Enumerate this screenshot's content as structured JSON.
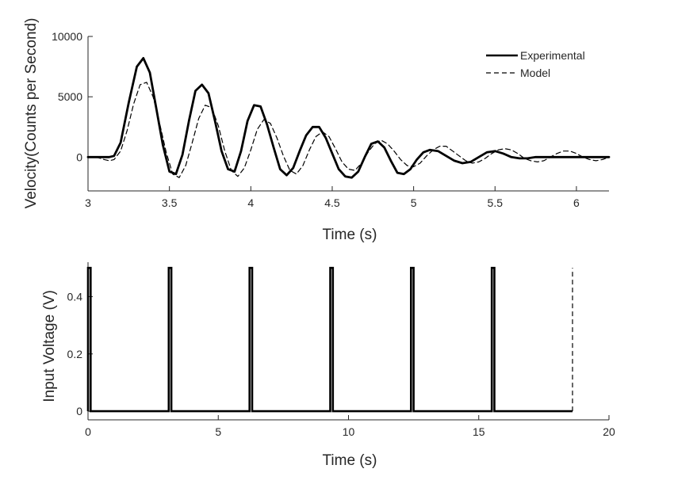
{
  "chart_data": [
    {
      "type": "line",
      "xlabel": "Time (s)",
      "ylabel": "Velocity(Counts per Second)",
      "xlim": [
        3,
        6.2
      ],
      "ylim": [
        -2800,
        10000
      ],
      "xticks": [
        "3",
        "3.5",
        "4",
        "4.5",
        "5",
        "5.5",
        "6"
      ],
      "yticks": [
        "0",
        "5000",
        "10000"
      ],
      "legend_position": "top-right",
      "series": [
        {
          "name": "Experimental",
          "style": "solid-thick",
          "color": "#000000",
          "x": [
            3.0,
            3.05,
            3.1,
            3.13,
            3.16,
            3.2,
            3.25,
            3.3,
            3.34,
            3.38,
            3.42,
            3.46,
            3.5,
            3.54,
            3.58,
            3.62,
            3.66,
            3.7,
            3.74,
            3.78,
            3.82,
            3.86,
            3.9,
            3.94,
            3.98,
            4.02,
            4.06,
            4.1,
            4.14,
            4.18,
            4.22,
            4.26,
            4.3,
            4.34,
            4.38,
            4.42,
            4.46,
            4.5,
            4.54,
            4.58,
            4.62,
            4.66,
            4.7,
            4.74,
            4.78,
            4.82,
            4.86,
            4.9,
            4.94,
            4.98,
            5.02,
            5.06,
            5.1,
            5.15,
            5.2,
            5.25,
            5.3,
            5.35,
            5.4,
            5.45,
            5.5,
            5.55,
            5.6,
            5.65,
            5.7,
            5.75,
            5.8,
            5.85,
            5.9,
            5.95,
            6.0,
            6.05,
            6.1,
            6.15,
            6.2
          ],
          "y": [
            0,
            0,
            0,
            0,
            100,
            1200,
            4500,
            7500,
            8200,
            7000,
            4000,
            1000,
            -1200,
            -1400,
            200,
            3000,
            5500,
            6000,
            5300,
            3000,
            500,
            -1000,
            -1200,
            500,
            3000,
            4300,
            4200,
            2700,
            800,
            -1000,
            -1500,
            -900,
            500,
            1800,
            2500,
            2500,
            1600,
            300,
            -1000,
            -1600,
            -1700,
            -1200,
            0,
            1100,
            1300,
            800,
            -300,
            -1300,
            -1400,
            -1000,
            -200,
            400,
            600,
            500,
            100,
            -300,
            -500,
            -400,
            0,
            400,
            500,
            300,
            0,
            -100,
            -100,
            0,
            0,
            0,
            0,
            0,
            0,
            0,
            0,
            0,
            0
          ]
        },
        {
          "name": "Model",
          "style": "dashed",
          "color": "#000000",
          "x": [
            3.0,
            3.05,
            3.1,
            3.13,
            3.16,
            3.2,
            3.24,
            3.28,
            3.32,
            3.36,
            3.4,
            3.44,
            3.48,
            3.52,
            3.56,
            3.6,
            3.64,
            3.68,
            3.72,
            3.76,
            3.8,
            3.84,
            3.88,
            3.92,
            3.96,
            4.0,
            4.04,
            4.08,
            4.12,
            4.16,
            4.2,
            4.24,
            4.28,
            4.32,
            4.36,
            4.4,
            4.44,
            4.48,
            4.52,
            4.56,
            4.6,
            4.64,
            4.68,
            4.72,
            4.76,
            4.8,
            4.84,
            4.88,
            4.92,
            4.96,
            5.0,
            5.04,
            5.08,
            5.12,
            5.16,
            5.2,
            5.24,
            5.28,
            5.32,
            5.36,
            5.4,
            5.44,
            5.48,
            5.52,
            5.56,
            5.6,
            5.64,
            5.68,
            5.72,
            5.76,
            5.8,
            5.84,
            5.88,
            5.92,
            5.96,
            6.0,
            6.04,
            6.08,
            6.12,
            6.16,
            6.2
          ],
          "y": [
            0,
            0,
            -200,
            -300,
            -200,
            500,
            2200,
            4400,
            6000,
            6200,
            5000,
            2800,
            400,
            -1400,
            -1700,
            -700,
            1200,
            3200,
            4300,
            4100,
            2600,
            500,
            -1100,
            -1600,
            -900,
            600,
            2300,
            3100,
            2800,
            1600,
            100,
            -1100,
            -1400,
            -700,
            600,
            1700,
            2100,
            1700,
            700,
            -400,
            -1000,
            -1100,
            -500,
            400,
            1100,
            1400,
            1100,
            500,
            -200,
            -700,
            -800,
            -500,
            100,
            600,
            900,
            900,
            500,
            100,
            -300,
            -500,
            -400,
            -100,
            300,
            600,
            700,
            600,
            300,
            -100,
            -300,
            -400,
            -300,
            0,
            300,
            500,
            500,
            300,
            0,
            -200,
            -300,
            -200,
            0
          ]
        }
      ]
    },
    {
      "type": "line",
      "xlabel": "Time (s)",
      "ylabel": "Input Voltage (V)",
      "xlim": [
        0,
        20
      ],
      "ylim": [
        -0.03,
        0.52
      ],
      "xticks": [
        "0",
        "5",
        "10",
        "15",
        "20"
      ],
      "yticks": [
        "0",
        "0.2",
        "0.4"
      ],
      "series": [
        {
          "style": "solid-thick",
          "color": "#000000",
          "pulse_times": [
            0,
            3.1,
            6.2,
            9.3,
            12.4,
            15.5
          ],
          "pulse_width": 0.1,
          "pulse_height": 0.5,
          "end_time": 18.6
        },
        {
          "style": "dashed",
          "color": "#000000",
          "x": [
            18.6,
            18.6
          ],
          "y": [
            0,
            0.5
          ]
        }
      ]
    }
  ]
}
